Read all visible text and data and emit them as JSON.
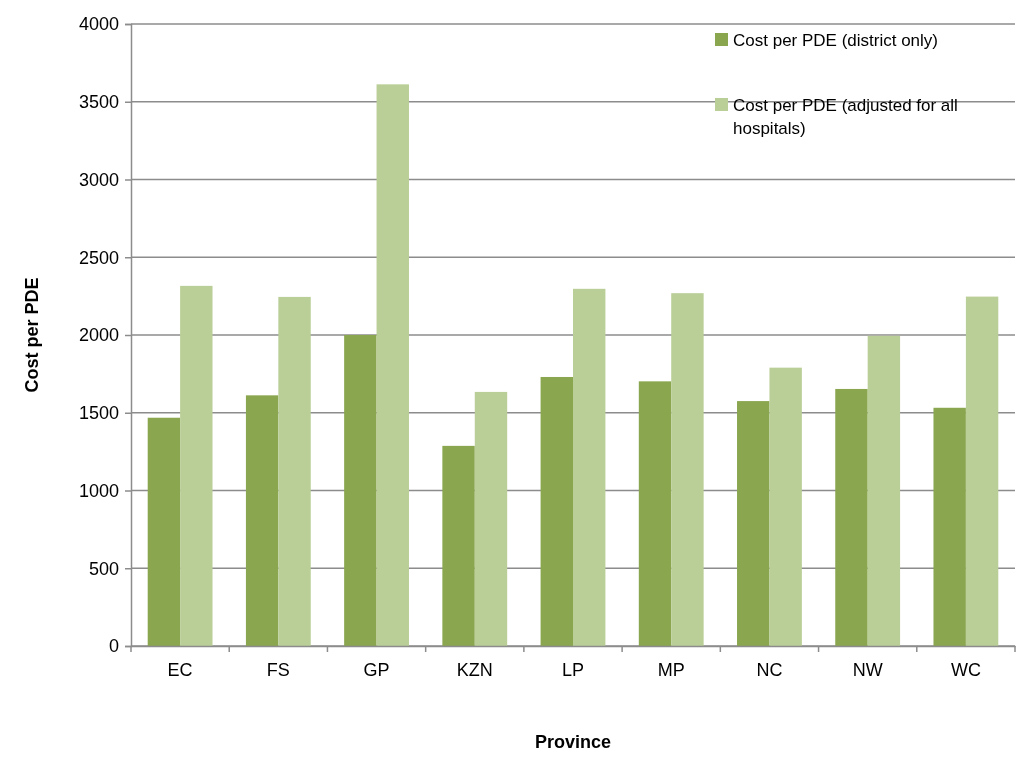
{
  "chart_data": {
    "type": "bar",
    "xlabel": "Province",
    "ylabel": "Cost per PDE",
    "categories": [
      "EC",
      "FS",
      "GP",
      "KZN",
      "LP",
      "MP",
      "NC",
      "NW",
      "WC"
    ],
    "series": [
      {
        "name": "Cost per PDE (district only)",
        "color": "#8aa64f",
        "values": [
          1468,
          1612,
          2000,
          1287,
          1730,
          1702,
          1575,
          1653,
          1532
        ]
      },
      {
        "name": "Cost per PDE (adjusted for all hospitals)",
        "color": "#bacf97",
        "values": [
          2316,
          2245,
          3612,
          1634,
          2297,
          2269,
          1790,
          1995,
          2247
        ]
      }
    ],
    "ylim": [
      0,
      4000
    ],
    "yticks": [
      0,
      500,
      1000,
      1500,
      2000,
      2500,
      3000,
      3500,
      4000
    ],
    "grid": "y",
    "legend": "top right"
  }
}
